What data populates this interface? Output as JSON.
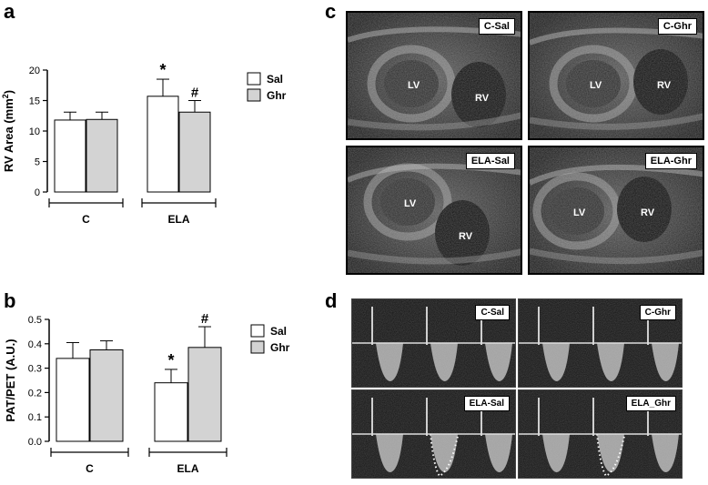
{
  "panels": {
    "a": "a",
    "b": "b",
    "c": "c",
    "d": "d"
  },
  "chart_data": [
    {
      "type": "bar",
      "panel": "a",
      "categories": [
        "C",
        "ELA"
      ],
      "series": [
        {
          "name": "Sal",
          "values": [
            11.8,
            15.7
          ],
          "errors": [
            1.3,
            2.8
          ],
          "color": "#ffffff"
        },
        {
          "name": "Ghr",
          "values": [
            11.9,
            13.1
          ],
          "errors": [
            1.2,
            1.9
          ],
          "color": "#d3d3d3"
        }
      ],
      "ylabel": "RV Area (mm",
      "ylabel_sup": "2",
      "ylabel_end": ")",
      "ylim": [
        0,
        20
      ],
      "yticks": [
        0,
        5,
        10,
        15,
        20
      ],
      "ytick_labels": [
        "0",
        "5",
        "10",
        "15",
        "20"
      ],
      "annotations": [
        {
          "category": "ELA",
          "series": "Sal",
          "text": "*"
        },
        {
          "category": "ELA",
          "series": "Ghr",
          "text": "#"
        }
      ],
      "legend": "top-right"
    },
    {
      "type": "bar",
      "panel": "b",
      "categories": [
        "C",
        "ELA"
      ],
      "series": [
        {
          "name": "Sal",
          "values": [
            0.34,
            0.24
          ],
          "errors": [
            0.065,
            0.055
          ],
          "color": "#ffffff"
        },
        {
          "name": "Ghr",
          "values": [
            0.375,
            0.385
          ],
          "errors": [
            0.037,
            0.085
          ],
          "color": "#d3d3d3"
        }
      ],
      "ylabel": "PAT/PET (A.U.)",
      "ylim": [
        0,
        0.5
      ],
      "yticks": [
        0,
        0.1,
        0.2,
        0.3,
        0.4,
        0.5
      ],
      "ytick_labels": [
        "0.0",
        "0.1",
        "0.2",
        "0.3",
        "0.4",
        "0.5"
      ],
      "annotations": [
        {
          "category": "ELA",
          "series": "Sal",
          "text": "*"
        },
        {
          "category": "ELA",
          "series": "Ghr",
          "text": "#"
        }
      ],
      "legend": "top-right"
    }
  ],
  "echo_images": [
    {
      "tag": "C-Sal",
      "labels": [
        "LV",
        "RV"
      ]
    },
    {
      "tag": "C-Ghr",
      "labels": [
        "LV",
        "RV"
      ]
    },
    {
      "tag": "ELA-Sal",
      "labels": [
        "LV",
        "RV"
      ]
    },
    {
      "tag": "ELA-Ghr",
      "labels": [
        "LV",
        "RV"
      ]
    }
  ],
  "doppler_images": [
    {
      "tag": "C-Sal",
      "dotted": false
    },
    {
      "tag": "C-Ghr",
      "dotted": false
    },
    {
      "tag": "ELA-Sal",
      "dotted": true
    },
    {
      "tag": "ELA_Ghr",
      "dotted": true
    }
  ]
}
